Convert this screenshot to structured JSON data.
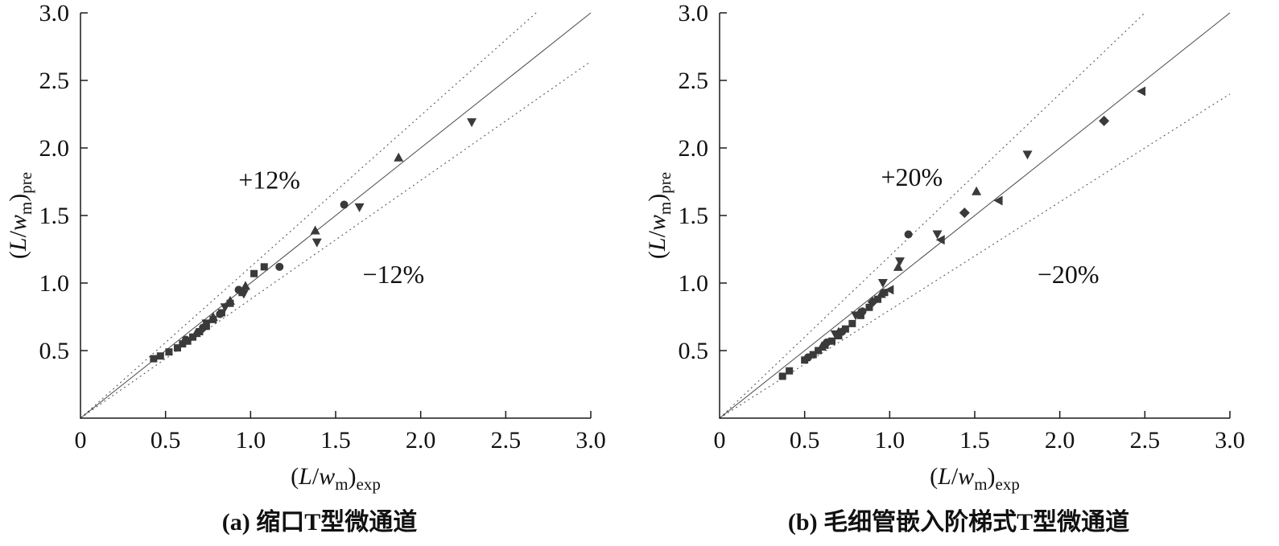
{
  "colors": {
    "ink": "#1a1a1a",
    "reference_line": "#4a4a4a",
    "marker": "#3a3a3a"
  },
  "chart_data": [
    {
      "type": "scatter",
      "caption": "(a) 缩口T型微通道",
      "xlabel_text": "(L/wm)exp",
      "ylabel_text": "(L/wm)pre",
      "xlabel_parts": [
        {
          "t": "("
        },
        {
          "t": "L",
          "i": true
        },
        {
          "t": "/"
        },
        {
          "t": "w",
          "i": true
        },
        {
          "t": "m",
          "sub": true
        },
        {
          "t": ")"
        },
        {
          "t": "exp",
          "sub": true
        }
      ],
      "ylabel_parts": [
        {
          "t": "("
        },
        {
          "t": "L",
          "i": true
        },
        {
          "t": "/"
        },
        {
          "t": "w",
          "i": true
        },
        {
          "t": "m",
          "sub": true
        },
        {
          "t": ")"
        },
        {
          "t": "pre",
          "sub": true
        }
      ],
      "xlim": [
        0,
        3.0
      ],
      "ylim": [
        0,
        3.0
      ],
      "ticks": [
        0,
        0.5,
        1.0,
        1.5,
        2.0,
        2.5,
        3.0
      ],
      "tick_labels": [
        "0",
        "0.5",
        "1.0",
        "1.5",
        "2.0",
        "2.5",
        "3.0"
      ],
      "grid": false,
      "reference_lines": [
        {
          "slope": 1.0,
          "style": "solid",
          "label": "y = x"
        },
        {
          "slope": 1.12,
          "style": "dashed",
          "label": "+12%"
        },
        {
          "slope": 0.88,
          "style": "dashed",
          "label": "-12%"
        }
      ],
      "annotations": [
        {
          "text": "+12%",
          "x": 1.11,
          "y": 1.7
        },
        {
          "text": "−12%",
          "x": 1.84,
          "y": 1.0
        }
      ],
      "series": [
        {
          "name": "squares",
          "marker": "square",
          "points": [
            [
              0.43,
              0.44
            ],
            [
              0.47,
              0.46
            ],
            [
              0.52,
              0.49
            ],
            [
              0.57,
              0.52
            ],
            [
              0.6,
              0.55
            ],
            [
              0.63,
              0.57
            ],
            [
              0.66,
              0.6
            ],
            [
              0.7,
              0.64
            ],
            [
              0.74,
              0.68
            ],
            [
              0.78,
              0.73
            ],
            [
              0.83,
              0.78
            ],
            [
              0.88,
              0.85
            ],
            [
              0.95,
              0.93
            ],
            [
              1.02,
              1.07
            ],
            [
              1.08,
              1.12
            ]
          ]
        },
        {
          "name": "circles",
          "marker": "circle",
          "points": [
            [
              0.62,
              0.58
            ],
            [
              0.72,
              0.67
            ],
            [
              0.82,
              0.77
            ],
            [
              0.93,
              0.95
            ],
            [
              1.17,
              1.12
            ],
            [
              1.55,
              1.58
            ]
          ]
        },
        {
          "name": "triangles-up",
          "marker": "triangle-up",
          "points": [
            [
              0.68,
              0.63
            ],
            [
              0.78,
              0.75
            ],
            [
              0.88,
              0.87
            ],
            [
              0.97,
              0.98
            ],
            [
              1.38,
              1.39
            ],
            [
              1.87,
              1.93
            ]
          ]
        },
        {
          "name": "triangles-down",
          "marker": "triangle-down",
          "points": [
            [
              0.74,
              0.7
            ],
            [
              0.85,
              0.82
            ],
            [
              0.96,
              0.92
            ],
            [
              1.39,
              1.3
            ],
            [
              1.64,
              1.56
            ],
            [
              2.3,
              2.19
            ]
          ]
        }
      ]
    },
    {
      "type": "scatter",
      "caption": "(b) 毛细管嵌入阶梯式T型微通道",
      "xlabel_text": "(L/wm)exp",
      "ylabel_text": "(L/wm)pre",
      "xlabel_parts": [
        {
          "t": "("
        },
        {
          "t": "L",
          "i": true
        },
        {
          "t": "/"
        },
        {
          "t": "w",
          "i": true
        },
        {
          "t": "m",
          "sub": true
        },
        {
          "t": ")"
        },
        {
          "t": "exp",
          "sub": true
        }
      ],
      "ylabel_parts": [
        {
          "t": "("
        },
        {
          "t": "L",
          "i": true
        },
        {
          "t": "/"
        },
        {
          "t": "w",
          "i": true
        },
        {
          "t": "m",
          "sub": true
        },
        {
          "t": ")"
        },
        {
          "t": "pre",
          "sub": true
        }
      ],
      "xlim": [
        0,
        3.0
      ],
      "ylim": [
        0,
        3.0
      ],
      "ticks": [
        0,
        0.5,
        1.0,
        1.5,
        2.0,
        2.5,
        3.0
      ],
      "tick_labels": [
        "0",
        "0.5",
        "1.0",
        "1.5",
        "2.0",
        "2.5",
        "3.0"
      ],
      "grid": false,
      "reference_lines": [
        {
          "slope": 1.0,
          "style": "solid",
          "label": "y = x"
        },
        {
          "slope": 1.2,
          "style": "dashed",
          "label": "+20%"
        },
        {
          "slope": 0.8,
          "style": "dashed",
          "label": "-20%"
        }
      ],
      "annotations": [
        {
          "text": "+20%",
          "x": 1.13,
          "y": 1.72
        },
        {
          "text": "−20%",
          "x": 2.05,
          "y": 1.0
        }
      ],
      "series": [
        {
          "name": "squares",
          "marker": "square",
          "points": [
            [
              0.37,
              0.31
            ],
            [
              0.41,
              0.35
            ],
            [
              0.5,
              0.43
            ],
            [
              0.55,
              0.47
            ],
            [
              0.58,
              0.5
            ],
            [
              0.62,
              0.54
            ],
            [
              0.66,
              0.57
            ],
            [
              0.7,
              0.61
            ],
            [
              0.74,
              0.66
            ],
            [
              0.78,
              0.7
            ],
            [
              0.83,
              0.76
            ],
            [
              0.88,
              0.82
            ],
            [
              0.93,
              0.88
            ],
            [
              0.97,
              0.93
            ]
          ]
        },
        {
          "name": "circles",
          "marker": "circle",
          "points": [
            [
              0.52,
              0.45
            ],
            [
              0.63,
              0.56
            ],
            [
              0.72,
              0.64
            ],
            [
              0.84,
              0.79
            ],
            [
              1.11,
              1.36
            ]
          ]
        },
        {
          "name": "triangles-up",
          "marker": "triangle-up",
          "points": [
            [
              0.6,
              0.53
            ],
            [
              0.7,
              0.64
            ],
            [
              0.82,
              0.78
            ],
            [
              0.95,
              0.92
            ],
            [
              1.05,
              1.12
            ],
            [
              1.51,
              1.68
            ]
          ]
        },
        {
          "name": "triangles-down",
          "marker": "triangle-down",
          "points": [
            [
              0.68,
              0.62
            ],
            [
              0.8,
              0.76
            ],
            [
              0.96,
              1.0
            ],
            [
              1.06,
              1.16
            ],
            [
              1.28,
              1.36
            ],
            [
              1.81,
              1.95
            ]
          ]
        },
        {
          "name": "diamonds",
          "marker": "diamond",
          "points": [
            [
              0.9,
              0.86
            ],
            [
              1.44,
              1.52
            ],
            [
              2.26,
              2.2
            ]
          ]
        },
        {
          "name": "triangles-left",
          "marker": "triangle-left",
          "points": [
            [
              1.0,
              0.95
            ],
            [
              1.3,
              1.32
            ],
            [
              1.64,
              1.61
            ],
            [
              2.48,
              2.42
            ]
          ]
        }
      ]
    }
  ]
}
